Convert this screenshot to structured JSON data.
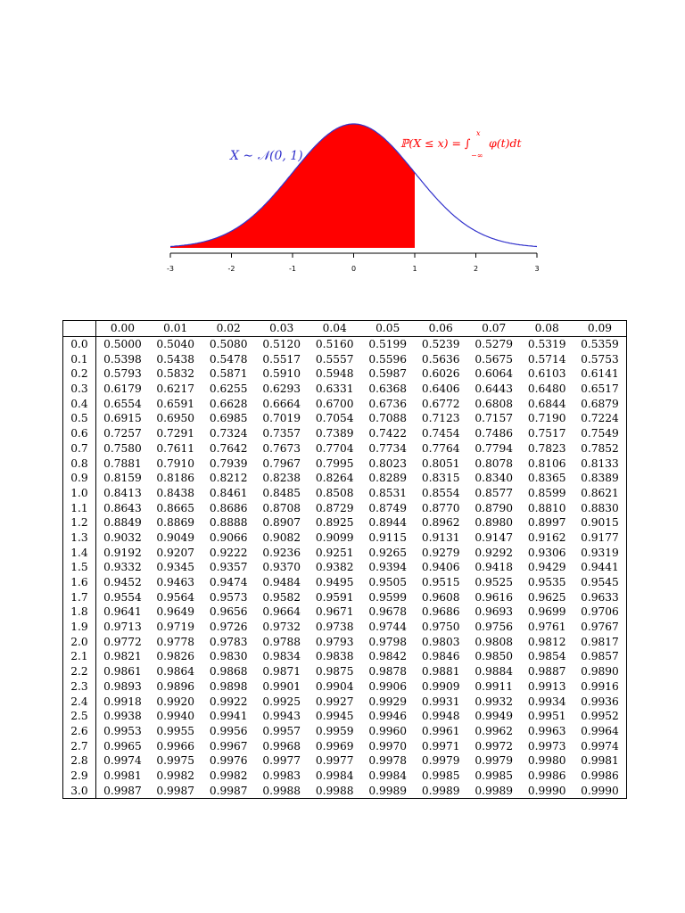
{
  "figure": {
    "dist_label": "X ∼ 𝒩(0, 1)",
    "cdf_label": "ℙ(X ≤ x) = ∫",
    "integral_lower": "−∞",
    "integral_upper": "x",
    "integrand": "φ(t)dt",
    "shaded_upto": 1,
    "x_ticks": [
      "-3",
      "-2",
      "-1",
      "0",
      "1",
      "2",
      "3"
    ],
    "colors": {
      "curve": "#3333cc",
      "fill": "#ff0000",
      "axis": "#000000"
    }
  },
  "table": {
    "columns": [
      "0.00",
      "0.01",
      "0.02",
      "0.03",
      "0.04",
      "0.05",
      "0.06",
      "0.07",
      "0.08",
      "0.09"
    ],
    "rows": [
      {
        "z": "0.0",
        "values": [
          "0.5000",
          "0.5040",
          "0.5080",
          "0.5120",
          "0.5160",
          "0.5199",
          "0.5239",
          "0.5279",
          "0.5319",
          "0.5359"
        ]
      },
      {
        "z": "0.1",
        "values": [
          "0.5398",
          "0.5438",
          "0.5478",
          "0.5517",
          "0.5557",
          "0.5596",
          "0.5636",
          "0.5675",
          "0.5714",
          "0.5753"
        ]
      },
      {
        "z": "0.2",
        "values": [
          "0.5793",
          "0.5832",
          "0.5871",
          "0.5910",
          "0.5948",
          "0.5987",
          "0.6026",
          "0.6064",
          "0.6103",
          "0.6141"
        ]
      },
      {
        "z": "0.3",
        "values": [
          "0.6179",
          "0.6217",
          "0.6255",
          "0.6293",
          "0.6331",
          "0.6368",
          "0.6406",
          "0.6443",
          "0.6480",
          "0.6517"
        ]
      },
      {
        "z": "0.4",
        "values": [
          "0.6554",
          "0.6591",
          "0.6628",
          "0.6664",
          "0.6700",
          "0.6736",
          "0.6772",
          "0.6808",
          "0.6844",
          "0.6879"
        ]
      },
      {
        "z": "0.5",
        "values": [
          "0.6915",
          "0.6950",
          "0.6985",
          "0.7019",
          "0.7054",
          "0.7088",
          "0.7123",
          "0.7157",
          "0.7190",
          "0.7224"
        ]
      },
      {
        "z": "0.6",
        "values": [
          "0.7257",
          "0.7291",
          "0.7324",
          "0.7357",
          "0.7389",
          "0.7422",
          "0.7454",
          "0.7486",
          "0.7517",
          "0.7549"
        ]
      },
      {
        "z": "0.7",
        "values": [
          "0.7580",
          "0.7611",
          "0.7642",
          "0.7673",
          "0.7704",
          "0.7734",
          "0.7764",
          "0.7794",
          "0.7823",
          "0.7852"
        ]
      },
      {
        "z": "0.8",
        "values": [
          "0.7881",
          "0.7910",
          "0.7939",
          "0.7967",
          "0.7995",
          "0.8023",
          "0.8051",
          "0.8078",
          "0.8106",
          "0.8133"
        ]
      },
      {
        "z": "0.9",
        "values": [
          "0.8159",
          "0.8186",
          "0.8212",
          "0.8238",
          "0.8264",
          "0.8289",
          "0.8315",
          "0.8340",
          "0.8365",
          "0.8389"
        ]
      },
      {
        "z": "1.0",
        "values": [
          "0.8413",
          "0.8438",
          "0.8461",
          "0.8485",
          "0.8508",
          "0.8531",
          "0.8554",
          "0.8577",
          "0.8599",
          "0.8621"
        ]
      },
      {
        "z": "1.1",
        "values": [
          "0.8643",
          "0.8665",
          "0.8686",
          "0.8708",
          "0.8729",
          "0.8749",
          "0.8770",
          "0.8790",
          "0.8810",
          "0.8830"
        ]
      },
      {
        "z": "1.2",
        "values": [
          "0.8849",
          "0.8869",
          "0.8888",
          "0.8907",
          "0.8925",
          "0.8944",
          "0.8962",
          "0.8980",
          "0.8997",
          "0.9015"
        ]
      },
      {
        "z": "1.3",
        "values": [
          "0.9032",
          "0.9049",
          "0.9066",
          "0.9082",
          "0.9099",
          "0.9115",
          "0.9131",
          "0.9147",
          "0.9162",
          "0.9177"
        ]
      },
      {
        "z": "1.4",
        "values": [
          "0.9192",
          "0.9207",
          "0.9222",
          "0.9236",
          "0.9251",
          "0.9265",
          "0.9279",
          "0.9292",
          "0.9306",
          "0.9319"
        ]
      },
      {
        "z": "1.5",
        "values": [
          "0.9332",
          "0.9345",
          "0.9357",
          "0.9370",
          "0.9382",
          "0.9394",
          "0.9406",
          "0.9418",
          "0.9429",
          "0.9441"
        ]
      },
      {
        "z": "1.6",
        "values": [
          "0.9452",
          "0.9463",
          "0.9474",
          "0.9484",
          "0.9495",
          "0.9505",
          "0.9515",
          "0.9525",
          "0.9535",
          "0.9545"
        ]
      },
      {
        "z": "1.7",
        "values": [
          "0.9554",
          "0.9564",
          "0.9573",
          "0.9582",
          "0.9591",
          "0.9599",
          "0.9608",
          "0.9616",
          "0.9625",
          "0.9633"
        ]
      },
      {
        "z": "1.8",
        "values": [
          "0.9641",
          "0.9649",
          "0.9656",
          "0.9664",
          "0.9671",
          "0.9678",
          "0.9686",
          "0.9693",
          "0.9699",
          "0.9706"
        ]
      },
      {
        "z": "1.9",
        "values": [
          "0.9713",
          "0.9719",
          "0.9726",
          "0.9732",
          "0.9738",
          "0.9744",
          "0.9750",
          "0.9756",
          "0.9761",
          "0.9767"
        ]
      },
      {
        "z": "2.0",
        "values": [
          "0.9772",
          "0.9778",
          "0.9783",
          "0.9788",
          "0.9793",
          "0.9798",
          "0.9803",
          "0.9808",
          "0.9812",
          "0.9817"
        ]
      },
      {
        "z": "2.1",
        "values": [
          "0.9821",
          "0.9826",
          "0.9830",
          "0.9834",
          "0.9838",
          "0.9842",
          "0.9846",
          "0.9850",
          "0.9854",
          "0.9857"
        ]
      },
      {
        "z": "2.2",
        "values": [
          "0.9861",
          "0.9864",
          "0.9868",
          "0.9871",
          "0.9875",
          "0.9878",
          "0.9881",
          "0.9884",
          "0.9887",
          "0.9890"
        ]
      },
      {
        "z": "2.3",
        "values": [
          "0.9893",
          "0.9896",
          "0.9898",
          "0.9901",
          "0.9904",
          "0.9906",
          "0.9909",
          "0.9911",
          "0.9913",
          "0.9916"
        ]
      },
      {
        "z": "2.4",
        "values": [
          "0.9918",
          "0.9920",
          "0.9922",
          "0.9925",
          "0.9927",
          "0.9929",
          "0.9931",
          "0.9932",
          "0.9934",
          "0.9936"
        ]
      },
      {
        "z": "2.5",
        "values": [
          "0.9938",
          "0.9940",
          "0.9941",
          "0.9943",
          "0.9945",
          "0.9946",
          "0.9948",
          "0.9949",
          "0.9951",
          "0.9952"
        ]
      },
      {
        "z": "2.6",
        "values": [
          "0.9953",
          "0.9955",
          "0.9956",
          "0.9957",
          "0.9959",
          "0.9960",
          "0.9961",
          "0.9962",
          "0.9963",
          "0.9964"
        ]
      },
      {
        "z": "2.7",
        "values": [
          "0.9965",
          "0.9966",
          "0.9967",
          "0.9968",
          "0.9969",
          "0.9970",
          "0.9971",
          "0.9972",
          "0.9973",
          "0.9974"
        ]
      },
      {
        "z": "2.8",
        "values": [
          "0.9974",
          "0.9975",
          "0.9976",
          "0.9977",
          "0.9977",
          "0.9978",
          "0.9979",
          "0.9979",
          "0.9980",
          "0.9981"
        ]
      },
      {
        "z": "2.9",
        "values": [
          "0.9981",
          "0.9982",
          "0.9982",
          "0.9983",
          "0.9984",
          "0.9984",
          "0.9985",
          "0.9985",
          "0.9986",
          "0.9986"
        ]
      },
      {
        "z": "3.0",
        "values": [
          "0.9987",
          "0.9987",
          "0.9987",
          "0.9988",
          "0.9988",
          "0.9989",
          "0.9989",
          "0.9989",
          "0.9990",
          "0.9990"
        ]
      }
    ]
  }
}
